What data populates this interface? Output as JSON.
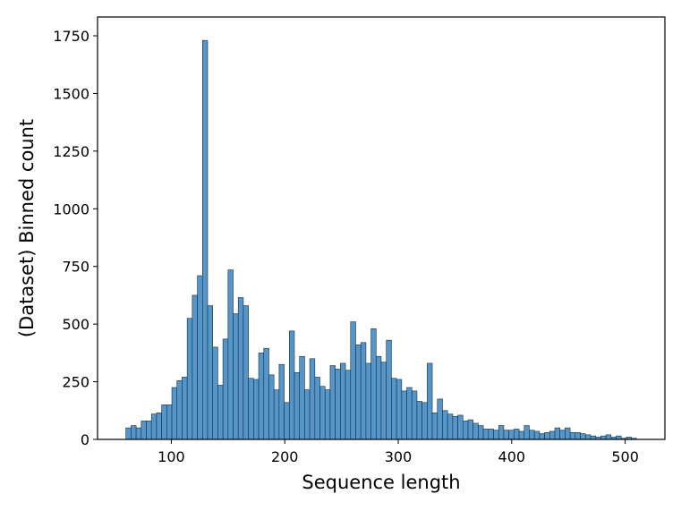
{
  "chart_data": {
    "type": "bar",
    "xlabel": "Sequence length",
    "ylabel": "(Dataset) Binned count",
    "xlim": [
      35,
      535
    ],
    "ylim": [
      0,
      1750
    ],
    "xticks": [
      100,
      200,
      300,
      400,
      500
    ],
    "yticks": [
      0,
      250,
      500,
      750,
      1000,
      1250,
      1500,
      1750
    ],
    "bin_width": 4.5,
    "bin_starts": [
      60,
      64.5,
      69,
      73.5,
      78,
      82.5,
      87,
      91.5,
      96,
      100.5,
      105,
      109.5,
      114,
      118.5,
      123,
      127.5,
      132,
      136.5,
      141,
      145.5,
      150,
      154.5,
      159,
      163.5,
      168,
      172.5,
      177,
      181.5,
      186,
      190.5,
      195,
      199.5,
      204,
      208.5,
      213,
      217.5,
      222,
      226.5,
      231,
      235.5,
      240,
      244.5,
      249,
      253.5,
      258,
      262.5,
      267,
      271.5,
      276,
      280.5,
      285,
      289.5,
      294,
      298.5,
      303,
      307.5,
      312,
      316.5,
      321,
      325.5,
      330,
      334.5,
      339,
      343.5,
      348,
      352.5,
      357,
      361.5,
      366,
      370.5,
      375,
      379.5,
      384,
      388.5,
      393,
      397.5,
      402,
      406.5,
      411,
      415.5,
      420,
      424.5,
      429,
      433.5,
      438,
      442.5,
      447,
      451.5,
      456,
      460.5,
      465,
      469.5,
      474,
      478.5,
      483,
      487.5,
      492,
      496.5,
      501,
      505.5
    ],
    "values": [
      50,
      60,
      50,
      80,
      80,
      110,
      115,
      150,
      150,
      225,
      255,
      270,
      525,
      625,
      710,
      1730,
      580,
      400,
      235,
      435,
      735,
      545,
      615,
      580,
      265,
      260,
      375,
      395,
      280,
      215,
      325,
      160,
      470,
      290,
      360,
      215,
      350,
      270,
      230,
      215,
      320,
      305,
      330,
      300,
      510,
      410,
      420,
      330,
      480,
      360,
      335,
      430,
      265,
      260,
      210,
      225,
      210,
      165,
      160,
      330,
      115,
      175,
      125,
      110,
      100,
      105,
      80,
      85,
      70,
      60,
      45,
      45,
      40,
      60,
      40,
      40,
      45,
      35,
      60,
      40,
      35,
      25,
      30,
      35,
      50,
      40,
      50,
      30,
      30,
      25,
      20,
      15,
      10,
      15,
      20,
      10,
      15,
      5,
      10,
      5
    ],
    "bar_color": "#5496c9",
    "edge_color": "#1f2d3a",
    "grid": false,
    "legend": "none"
  }
}
